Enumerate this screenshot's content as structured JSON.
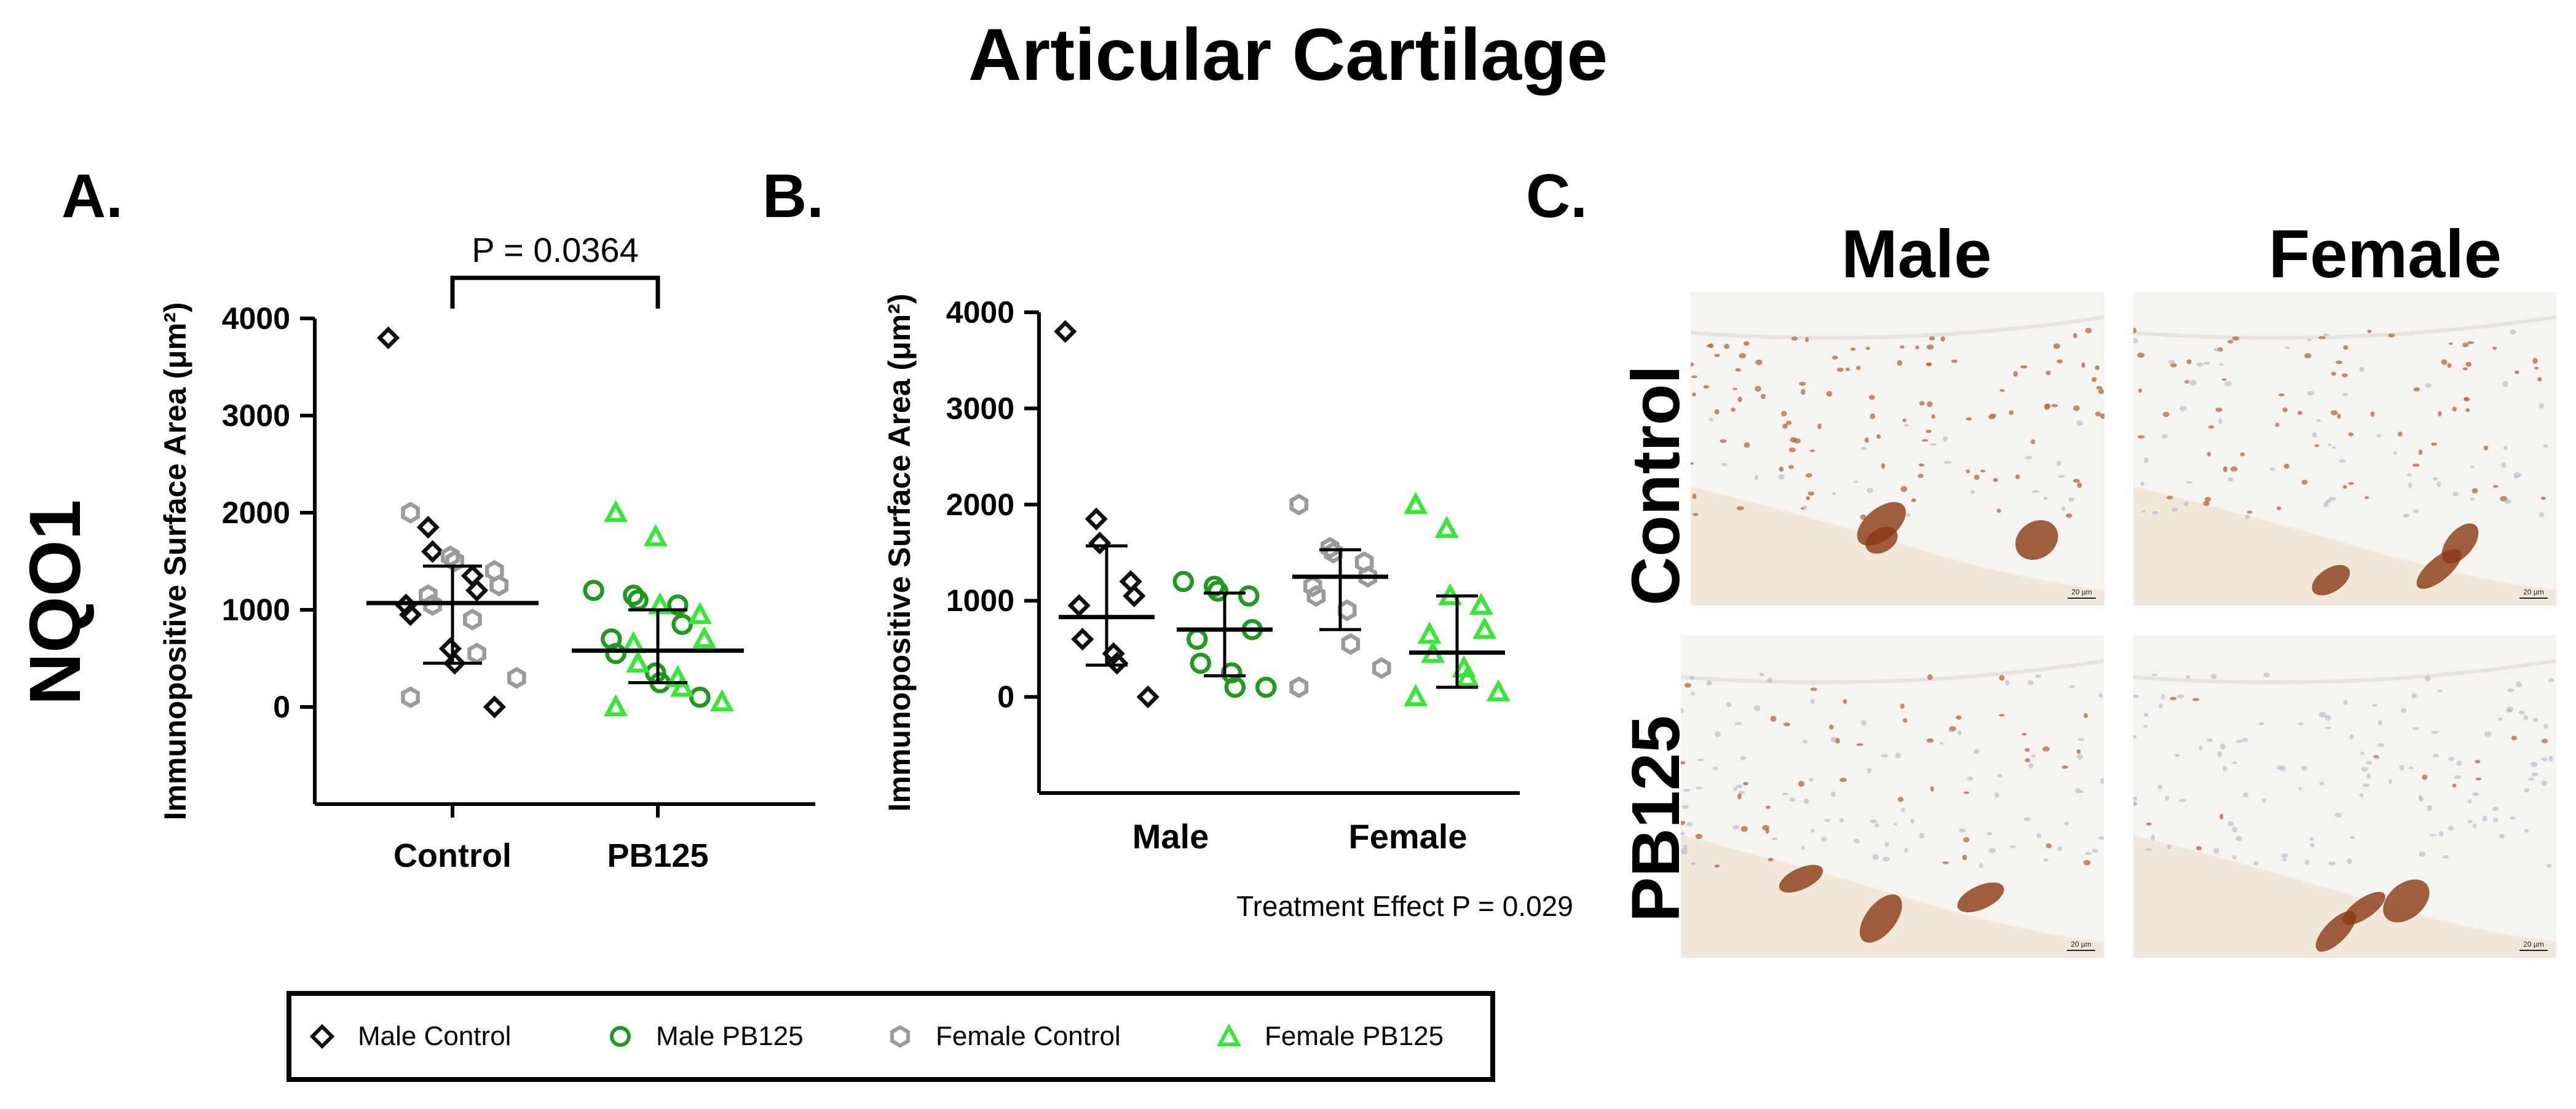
{
  "figure": {
    "title": "Articular Cartilage",
    "row_label": "NQO1"
  },
  "colors": {
    "male_control": "#111111",
    "male_pb125": "#1f9a1f",
    "female_control": "#9b9b9b",
    "female_pb125": "#35e835"
  },
  "chart_data": [
    {
      "panel": "A.",
      "type": "scatter",
      "ylabel": "Immunopositive Surface Area (μm²)",
      "ylim": [
        -1000,
        4000
      ],
      "yticks": [
        0,
        1000,
        2000,
        3000,
        4000
      ],
      "categories": [
        "Control",
        "PB125"
      ],
      "annotation": "P = 0.0364",
      "medians": [
        1070,
        580
      ],
      "iqr": [
        [
          450,
          1450
        ],
        [
          250,
          1000
        ]
      ],
      "series": [
        {
          "name": "Male Control",
          "category": "Control",
          "marker": "diamond",
          "color": "#111111",
          "values": [
            3800,
            1850,
            1600,
            1350,
            1200,
            1050,
            950,
            600,
            450,
            0
          ]
        },
        {
          "name": "Female Control",
          "category": "Control",
          "marker": "hexagon",
          "color": "#9b9b9b",
          "values": [
            2000,
            1550,
            1500,
            1400,
            1250,
            1150,
            1050,
            900,
            550,
            300,
            100
          ]
        },
        {
          "name": "Male PB125",
          "category": "PB125",
          "marker": "circle",
          "color": "#1f9a1f",
          "values": [
            1200,
            1150,
            1100,
            1050,
            850,
            700,
            550,
            350,
            250,
            100
          ]
        },
        {
          "name": "Female PB125",
          "category": "PB125",
          "marker": "triangle",
          "color": "#35e835",
          "values": [
            2000,
            1750,
            1050,
            950,
            700,
            650,
            450,
            300,
            200,
            50,
            0
          ]
        }
      ]
    },
    {
      "panel": "B.",
      "type": "scatter",
      "ylabel": "Immunopositive Surface Area (μm²)",
      "ylim": [
        -1000,
        4000
      ],
      "yticks": [
        0,
        1000,
        2000,
        3000,
        4000
      ],
      "categories": [
        "Male",
        "Female"
      ],
      "annotation": "Treatment Effect P = 0.029",
      "groups": [
        {
          "name": "Male Control",
          "category": "Male",
          "marker": "diamond",
          "color": "#111111",
          "median": 830,
          "iqr": [
            330,
            1570
          ],
          "values": [
            3800,
            1850,
            1600,
            1200,
            1050,
            950,
            600,
            450,
            350,
            0
          ]
        },
        {
          "name": "Male PB125",
          "category": "Male",
          "marker": "circle",
          "color": "#1f9a1f",
          "median": 700,
          "iqr": [
            220,
            1080
          ],
          "values": [
            1200,
            1150,
            1100,
            1050,
            700,
            600,
            350,
            250,
            100,
            100
          ]
        },
        {
          "name": "Female Control",
          "category": "Female",
          "marker": "hexagon",
          "color": "#9b9b9b",
          "median": 1250,
          "iqr": [
            700,
            1530
          ],
          "values": [
            2000,
            1550,
            1500,
            1400,
            1250,
            1150,
            1050,
            900,
            550,
            300,
            100
          ]
        },
        {
          "name": "Female PB125",
          "category": "Female",
          "marker": "triangle",
          "color": "#35e835",
          "median": 460,
          "iqr": [
            100,
            1050
          ],
          "values": [
            2000,
            1750,
            1050,
            950,
            700,
            650,
            450,
            300,
            200,
            50,
            0
          ]
        }
      ]
    }
  ],
  "legend": {
    "items": [
      {
        "label": "Male Control",
        "marker": "diamond",
        "color": "#111111"
      },
      {
        "label": "Male PB125",
        "marker": "circle",
        "color": "#1f9a1f"
      },
      {
        "label": "Female Control",
        "marker": "hexagon",
        "color": "#9b9b9b"
      },
      {
        "label": "Female PB125",
        "marker": "triangle",
        "color": "#35e835"
      }
    ]
  },
  "panel_c": {
    "letter": "C.",
    "col_labels": [
      "Male",
      "Female"
    ],
    "row_labels": [
      "Control",
      "PB125"
    ],
    "scale_bar": "20 µm"
  }
}
